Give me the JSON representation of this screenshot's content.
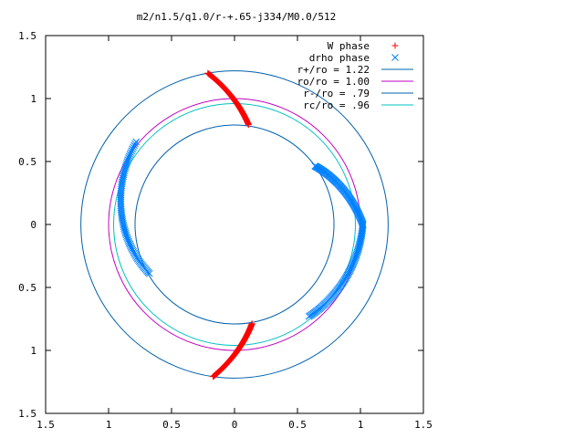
{
  "chart_data": {
    "type": "scatter",
    "title": "m2/n1.5/q1.0/r-+.65-j334/M0.0/512",
    "xlabel": "",
    "ylabel": "",
    "xlim": [
      -1.5,
      1.5
    ],
    "ylim": [
      -1.5,
      1.5
    ],
    "x_ticks": [
      "1.5",
      "1",
      "0.5",
      "0",
      "0.5",
      "1",
      "1.5"
    ],
    "y_ticks": [
      "1.5",
      "1",
      "0.5",
      "0",
      "0.5",
      "1",
      "1.5"
    ],
    "grid": false,
    "legend_position": "top-right",
    "series": [
      {
        "name": "W phase",
        "marker": "plus",
        "color": "#ff0000",
        "arcs": [
          {
            "r_from": 1.22,
            "r_to": 0.8,
            "theta_from_deg": 100,
            "theta_to_deg": 82
          },
          {
            "r_from": 0.8,
            "r_to": 1.22,
            "theta_from_deg": 280,
            "theta_to_deg": 262
          }
        ]
      },
      {
        "name": "drho phase",
        "marker": "x",
        "color": "#0080ff",
        "arcs": [
          {
            "r_from": 1.02,
            "r_to": 0.78,
            "theta_from_deg": 140,
            "theta_to_deg": 210
          },
          {
            "r_from": 0.79,
            "r_to": 1.02,
            "theta_from_deg": 36,
            "theta_to_deg": 0
          },
          {
            "r_from": 1.02,
            "r_to": 0.94,
            "theta_from_deg": 360,
            "theta_to_deg": 309
          }
        ]
      },
      {
        "name": "r+/ro = 1.22",
        "type": "circle",
        "radius": 1.22,
        "color": "#0060ad"
      },
      {
        "name": "ro/ro = 1.00",
        "type": "circle",
        "radius": 1.0,
        "color": "#c000c0"
      },
      {
        "name": "r-/ro = .79",
        "type": "circle",
        "radius": 0.79,
        "color": "#0060ad"
      },
      {
        "name": "rc/ro = .96",
        "type": "circle",
        "radius": 0.96,
        "color": "#00c0c0"
      }
    ]
  }
}
